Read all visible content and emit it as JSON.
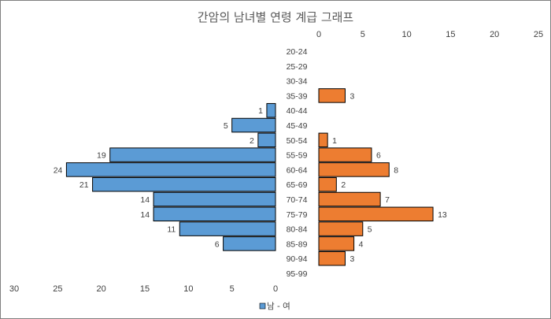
{
  "colors": {
    "male_fill": "#5b9bd5",
    "female_fill": "#ed7d31",
    "bar_stroke": "#000000",
    "axis_text": "#404040",
    "title_text": "#595959"
  },
  "chart_data": {
    "type": "bar",
    "orientation": "horizontal",
    "layout": "population-pyramid",
    "title": "간암의 남녀별 연령 계급 그래프",
    "categories": [
      "20-24",
      "25-29",
      "30-34",
      "35-39",
      "40-44",
      "45-49",
      "50-54",
      "55-59",
      "60-64",
      "65-69",
      "70-74",
      "75-79",
      "80-84",
      "85-89",
      "90-94",
      "95-99"
    ],
    "series": [
      {
        "name": "남",
        "side": "left",
        "values": [
          0,
          0,
          0,
          0,
          1,
          5,
          2,
          19,
          24,
          21,
          14,
          14,
          11,
          6,
          0,
          0
        ]
      },
      {
        "name": "여",
        "side": "right",
        "values": [
          0,
          0,
          0,
          3,
          0,
          0,
          1,
          6,
          8,
          2,
          7,
          13,
          5,
          4,
          3,
          0
        ]
      }
    ],
    "left_axis": {
      "ticks": [
        "30",
        "25",
        "20",
        "15",
        "10",
        "5",
        "0"
      ],
      "range": [
        0,
        30
      ],
      "position": "bottom"
    },
    "right_axis": {
      "ticks": [
        "0",
        "5",
        "10",
        "15",
        "20",
        "25"
      ],
      "range": [
        0,
        25
      ],
      "position": "top"
    },
    "legend": {
      "label": "남 - 여",
      "placement": "bottom-left"
    },
    "grid": false
  }
}
